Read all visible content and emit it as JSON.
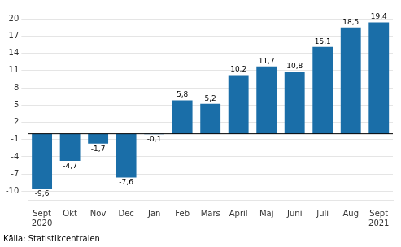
{
  "chart_data": {
    "type": "bar",
    "categories": [
      "Sept\n2020",
      "Okt",
      "Nov",
      "Dec",
      "Jan",
      "Feb",
      "Mars",
      "April",
      "Maj",
      "Juni",
      "Juli",
      "Aug",
      "Sept\n2021"
    ],
    "values": [
      -9.6,
      -4.7,
      -1.7,
      -7.6,
      -0.1,
      5.8,
      5.2,
      10.2,
      11.7,
      10.8,
      15.1,
      18.5,
      19.4
    ],
    "value_labels": [
      "-9,6",
      "-4,7",
      "-1,7",
      "-7,6",
      "-0,1",
      "5,8",
      "5,2",
      "10,2",
      "11,7",
      "10,8",
      "15,1",
      "18,5",
      "19,4"
    ],
    "data_labels": true,
    "color": "#1a6ea8",
    "ylim": [
      -11.5,
      22
    ],
    "yticks": [
      -10,
      -7,
      -4,
      -1,
      2,
      5,
      8,
      11,
      14,
      17,
      20
    ],
    "grid": true,
    "annotations": [
      "Källa: Statistikcentralen"
    ]
  }
}
